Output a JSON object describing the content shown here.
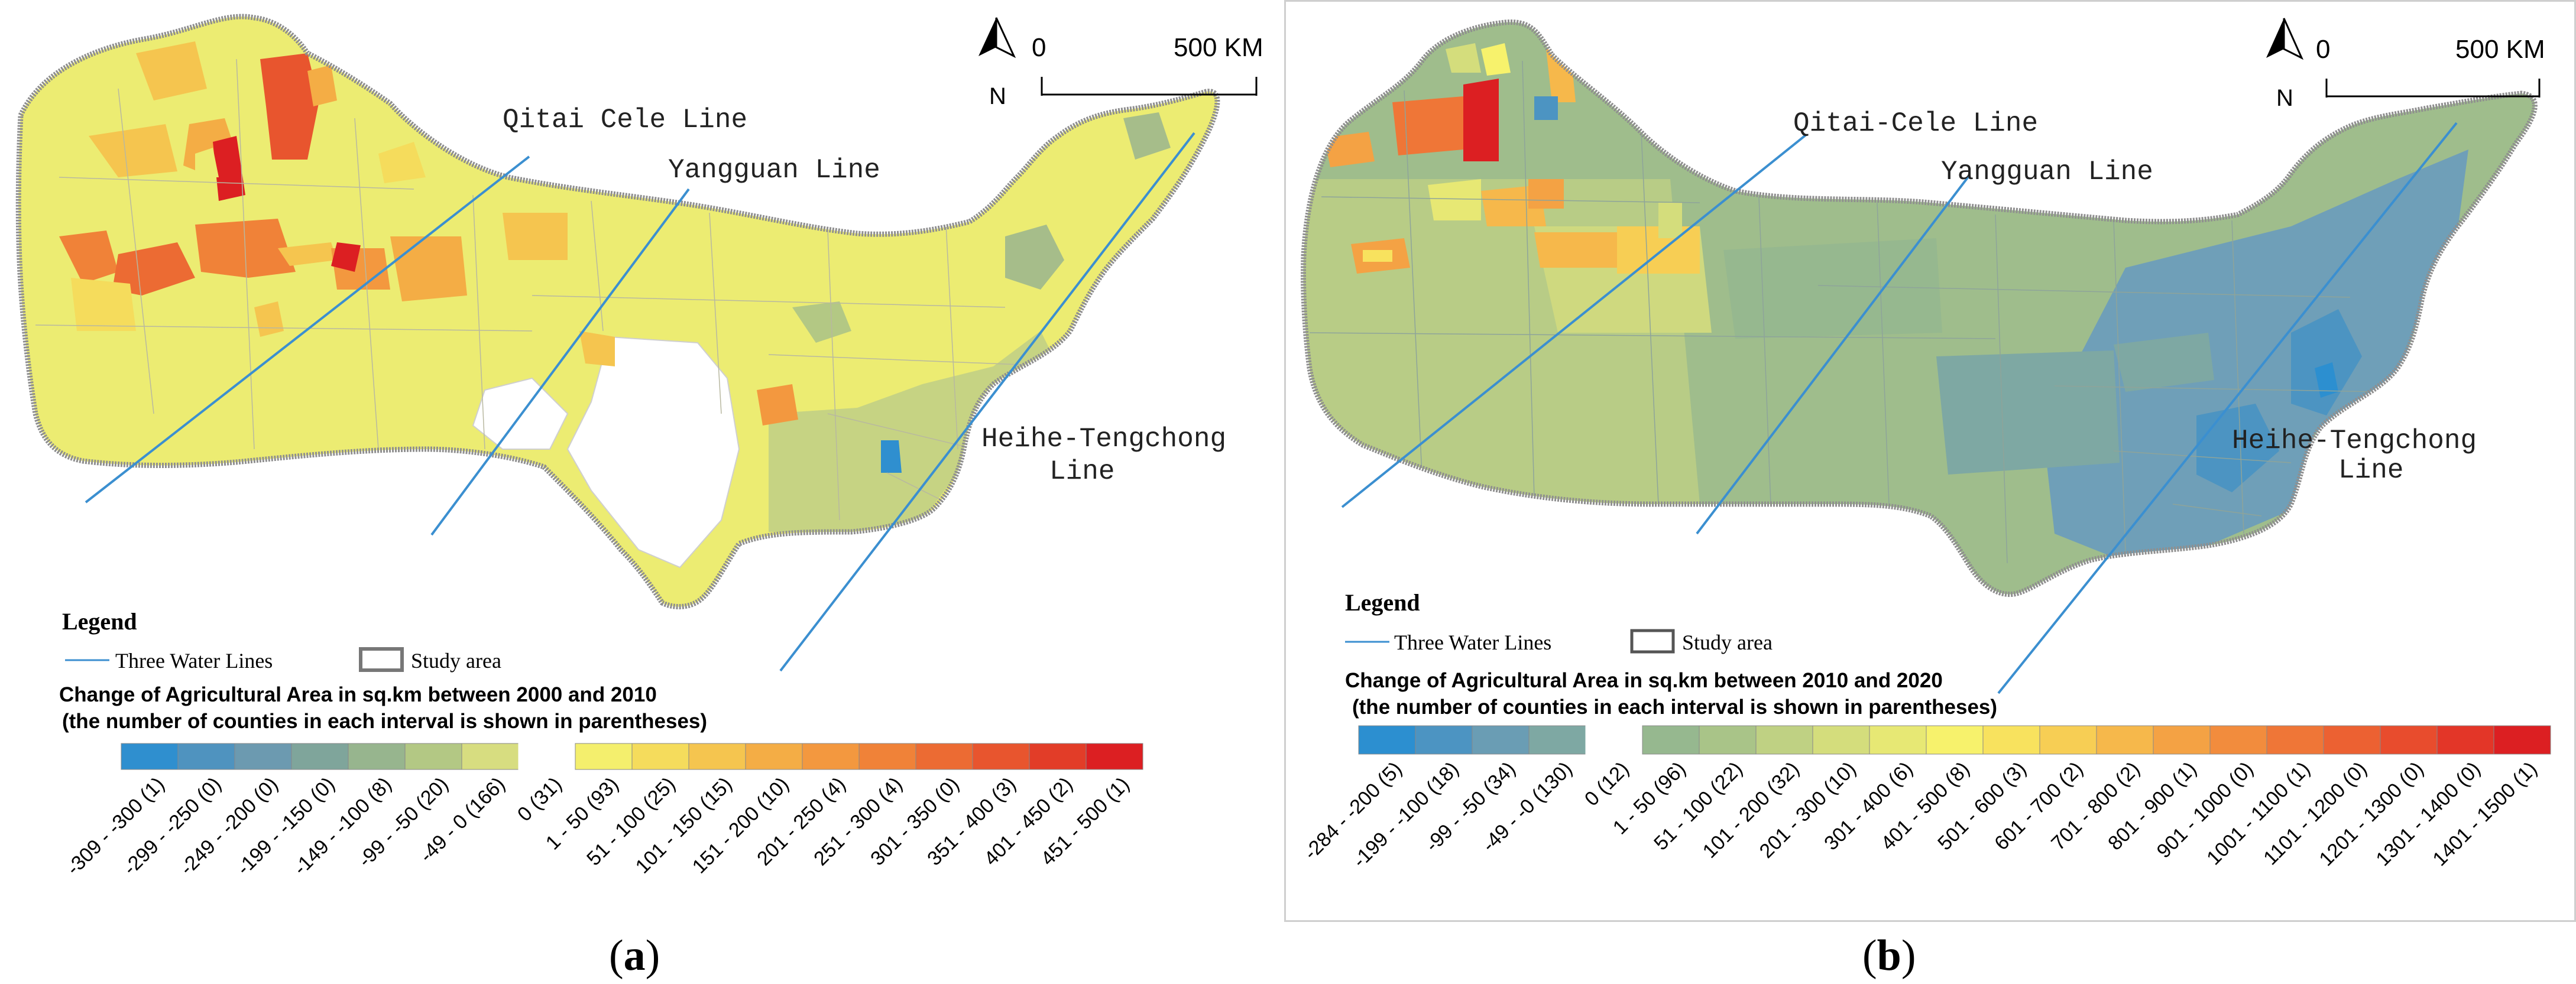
{
  "panels": [
    {
      "id": "a",
      "subfigure_label": "a",
      "scale": {
        "start": "0",
        "end": "500 KM",
        "north": "N"
      },
      "lines": [
        "Qitai Cele Line",
        "Yangguan Line",
        "Heihe-Tengchong",
        "Line"
      ],
      "legend": {
        "heading": "Legend",
        "water_lines": "Three Water Lines",
        "study_area": "Study area",
        "title_line1": "Change of Agricultural Area in sq.km between 2000 and 2010",
        "title_line2": "(the number of counties in each interval is shown in parentheses)",
        "intervals": [
          {
            "label": "-309 - -300 (1)",
            "color": "#2f8fcf"
          },
          {
            "label": "-299 - -250 (0)",
            "color": "#4f93bf"
          },
          {
            "label": "-249 - -200 (0)",
            "color": "#6c9ab0"
          },
          {
            "label": "-199 - -150 (0)",
            "color": "#7fa59b"
          },
          {
            "label": "-149 - -100 (8)",
            "color": "#97b58e"
          },
          {
            "label": "-99 - -50 (20)",
            "color": "#b3c884"
          },
          {
            "label": "-49 - 0 (166)",
            "color": "#d7dd80"
          },
          {
            "label": "0 (31)",
            "color": "#ffffff"
          },
          {
            "label": "1 - 50 (93)",
            "color": "#f4ef6d"
          },
          {
            "label": "51 - 100 (25)",
            "color": "#f5dc5c"
          },
          {
            "label": "101 - 150 (15)",
            "color": "#f5c54f"
          },
          {
            "label": "151 - 200 (10)",
            "color": "#f4ad45"
          },
          {
            "label": "201 - 250 (4)",
            "color": "#f3983f"
          },
          {
            "label": "251 - 300 (4)",
            "color": "#f08238"
          },
          {
            "label": "301 - 350 (0)",
            "color": "#ec6b33"
          },
          {
            "label": "351 - 400 (3)",
            "color": "#e8552e"
          },
          {
            "label": "401 - 450 (2)",
            "color": "#e23d28"
          },
          {
            "label": "451 - 500 (1)",
            "color": "#dc1f22"
          }
        ]
      }
    },
    {
      "id": "b",
      "subfigure_label": "b",
      "scale": {
        "start": "0",
        "end": "500 KM",
        "north": "N"
      },
      "lines": [
        "Qitai-Cele Line",
        "Yangguan Line",
        "Heihe-Tengchong",
        "Line"
      ],
      "legend": {
        "heading": "Legend",
        "water_lines": "Three Water Lines",
        "study_area": "Study area",
        "title_line1": "Change of Agricultural Area in sq.km between 2010 and 2020",
        "title_line2": "(the number of counties in each interval is shown in parentheses)",
        "intervals": [
          {
            "label": "-284 - -200 (5)",
            "color": "#2c8fd0"
          },
          {
            "label": "-199 - -100 (18)",
            "color": "#4c94c2"
          },
          {
            "label": "-99 - -50 (34)",
            "color": "#6a9db4"
          },
          {
            "label": "-49 - -0 (130)",
            "color": "#7ea8a3"
          },
          {
            "label": "0 (12)",
            "color": "#ffffff"
          },
          {
            "label": "1 - 50 (96)",
            "color": "#96b88f"
          },
          {
            "label": "51 - 100 (22)",
            "color": "#a9c488"
          },
          {
            "label": "101 - 200 (32)",
            "color": "#bfd183"
          },
          {
            "label": "201 - 300 (10)",
            "color": "#d4dd7c"
          },
          {
            "label": "301 - 400 (6)",
            "color": "#e7e874"
          },
          {
            "label": "401 - 500 (8)",
            "color": "#f7f26c"
          },
          {
            "label": "501 - 600 (3)",
            "color": "#f8e25e"
          },
          {
            "label": "601 - 700 (2)",
            "color": "#f7ce54"
          },
          {
            "label": "701 - 800 (2)",
            "color": "#f6b84b"
          },
          {
            "label": "801 - 900 (1)",
            "color": "#f4a244"
          },
          {
            "label": "901 - 1000 (0)",
            "color": "#f28c3d"
          },
          {
            "label": "1001 - 1100 (1)",
            "color": "#ef7637"
          },
          {
            "label": "1101 - 1200 (0)",
            "color": "#ec6132"
          },
          {
            "label": "1201 - 1300 (0)",
            "color": "#e84c2d"
          },
          {
            "label": "1301 - 1400 (0)",
            "color": "#e33628"
          },
          {
            "label": "1401 - 1500 (1)",
            "color": "#dc1f22"
          }
        ]
      }
    }
  ],
  "style": {
    "water_line_color": "#3b8fd0",
    "border_color": "#8f8f8f"
  }
}
